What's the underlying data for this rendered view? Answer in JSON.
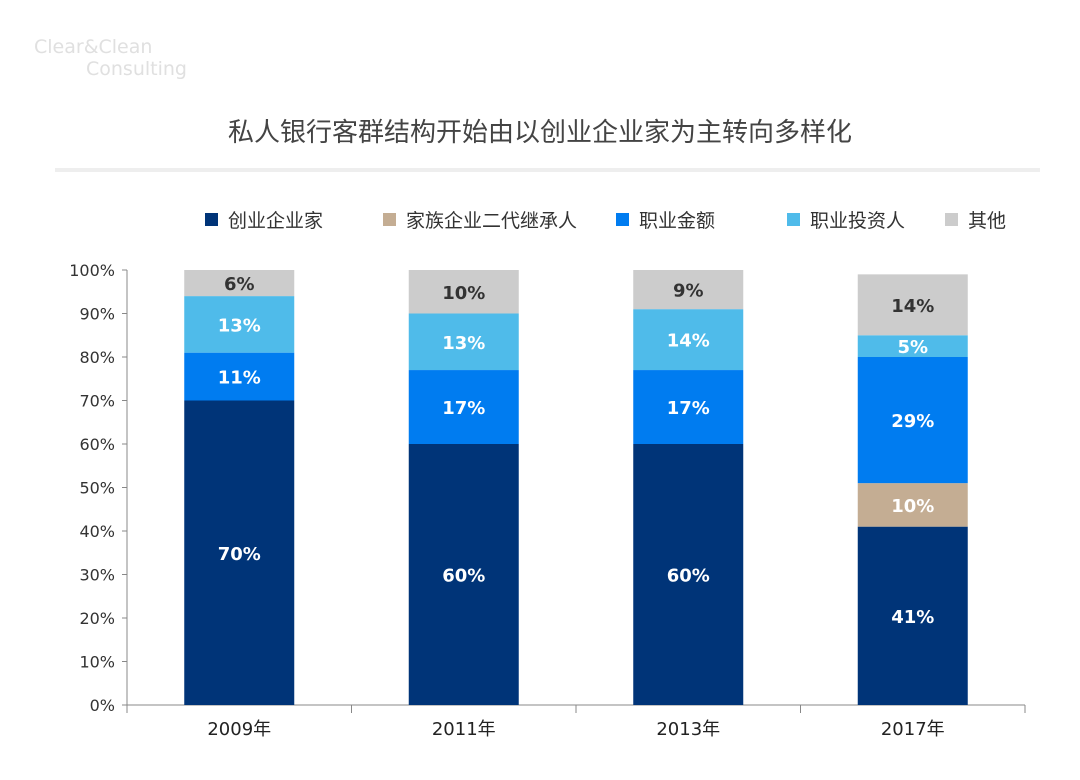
{
  "logo": {
    "line1": "Clear&Clean",
    "line2": "Consulting"
  },
  "chart_data": {
    "type": "bar",
    "stacked": true,
    "title": "私人银行客群结构开始由以创业企业家为主转向多样化",
    "categories": [
      "2009年",
      "2011年",
      "2013年",
      "2017年"
    ],
    "series": [
      {
        "name": "创业企业家",
        "color": "#003478",
        "values": [
          70,
          60,
          60,
          41
        ],
        "label_color": "#ffffff"
      },
      {
        "name": "家族企业二代继承人",
        "color": "#c4ad93",
        "values": [
          0,
          0,
          0,
          10
        ],
        "label_color": "#ffffff"
      },
      {
        "name": "职业金额",
        "color": "#007cf0",
        "values": [
          11,
          17,
          17,
          29
        ],
        "label_color": "#ffffff"
      },
      {
        "name": "职业投资人",
        "color": "#4fbbea",
        "values": [
          13,
          13,
          14,
          5
        ],
        "label_color": "#ffffff"
      },
      {
        "name": "其他",
        "color": "#cccccc",
        "values": [
          6,
          10,
          9,
          14
        ],
        "label_color": "#333333"
      }
    ],
    "ylim": [
      0,
      100
    ],
    "yticks": [
      "0%",
      "10%",
      "20%",
      "30%",
      "40%",
      "50%",
      "60%",
      "70%",
      "80%",
      "90%",
      "100%"
    ],
    "xlabel": "",
    "ylabel": "",
    "legend": "top",
    "grid": false
  }
}
